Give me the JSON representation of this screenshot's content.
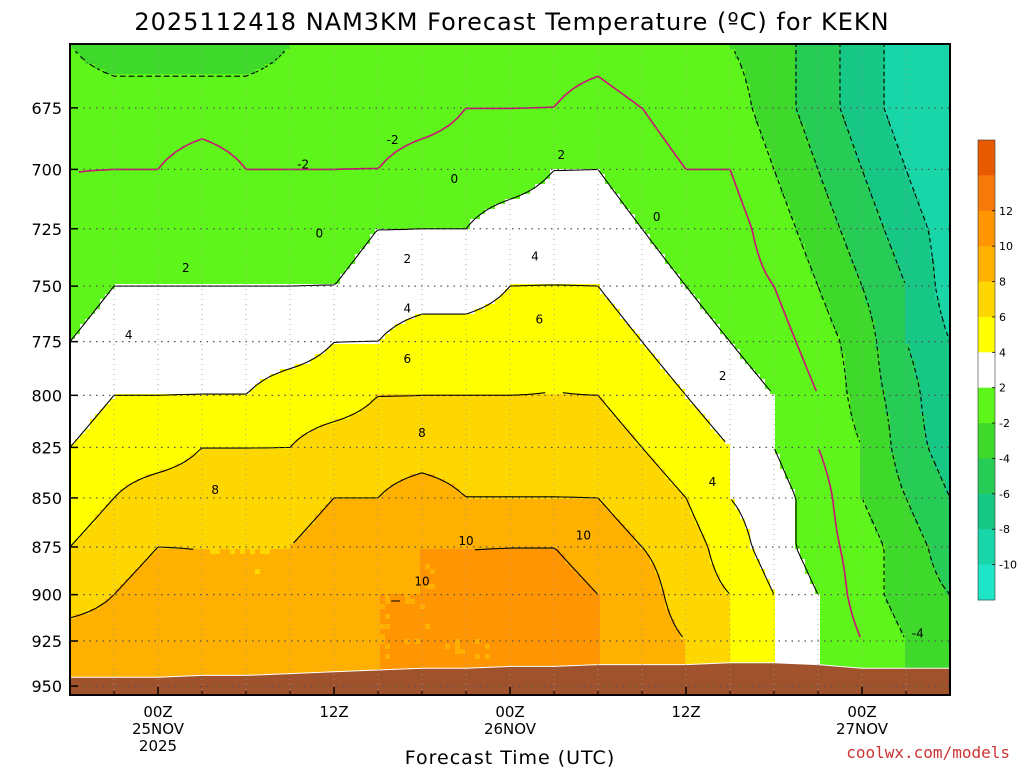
{
  "title": "2025112418 NAM3KM Forecast Temperature (ºC) for KEKN",
  "xlabel": "Forecast Time (UTC)",
  "credit": "coolwx.com/models",
  "x_ticks": [
    {
      "hour": 6,
      "lines": [
        "00Z",
        "25NOV",
        "2025"
      ]
    },
    {
      "hour": 18,
      "lines": [
        "12Z"
      ]
    },
    {
      "hour": 30,
      "lines": [
        "00Z",
        "26NOV"
      ]
    },
    {
      "hour": 42,
      "lines": [
        "12Z"
      ]
    },
    {
      "hour": 54,
      "lines": [
        "00Z",
        "27NOV"
      ]
    }
  ],
  "y_ticks": [
    675,
    700,
    725,
    750,
    775,
    800,
    825,
    850,
    875,
    900,
    925,
    950
  ],
  "colorbar": {
    "levels": [
      -12,
      -10,
      -8,
      -6,
      -4,
      -2,
      2,
      4,
      6,
      8,
      10,
      12,
      14
    ],
    "colors": [
      "#1fe5c8",
      "#19d6a8",
      "#17c785",
      "#26cc55",
      "#3fd92c",
      "#5ef51a",
      "#ffffff",
      "#ffff00",
      "#ffd700",
      "#ffb000",
      "#ff9500",
      "#f57a0a",
      "#e85a00"
    ],
    "labels": [
      "-10",
      "-8",
      "-6",
      "-4",
      "-2",
      "2",
      "4",
      "6",
      "8",
      "10",
      "12"
    ]
  },
  "colors": {
    "terrain": "#a0522d",
    "zero_line": "#cc1177",
    "contour": "#000000",
    "grid": "#555555"
  },
  "chart_data": {
    "type": "heatmap",
    "title": "2025112418 NAM3KM Forecast Temperature (ºC) for KEKN",
    "xlabel": "Forecast Time (UTC)",
    "ylabel": "",
    "x_units": "hours from 2025-11-24 18Z",
    "xlim": [
      0,
      60
    ],
    "ylim": [
      650,
      955
    ],
    "y_scale": "log-pressure",
    "contour_levels": [
      -10,
      -8,
      -6,
      -4,
      -2,
      0,
      2,
      4,
      6,
      8,
      10,
      12
    ],
    "x": [
      0,
      3,
      6,
      9,
      12,
      15,
      18,
      21,
      24,
      27,
      30,
      33,
      36,
      39,
      42,
      45,
      48,
      51,
      54,
      57,
      60
    ],
    "levels_hpa": [
      650,
      675,
      700,
      725,
      750,
      775,
      800,
      825,
      850,
      875,
      900,
      925,
      950
    ],
    "values": [
      [
        -2,
        -3,
        -3,
        -3,
        -3,
        -2,
        -2,
        -2,
        -2,
        -2,
        -2,
        -1,
        -1,
        -2,
        -2,
        -2,
        -3,
        -5,
        -7,
        -9,
        -10
      ],
      [
        -1,
        -1,
        -1,
        -1,
        -1,
        -1,
        -1,
        -1,
        -1,
        0,
        0,
        0,
        1,
        0,
        -1,
        -1,
        -3,
        -5,
        -7,
        -9,
        -10
      ],
      [
        0,
        0,
        0,
        1,
        0,
        0,
        0,
        0,
        1,
        1,
        1,
        2,
        2,
        1,
        0,
        0,
        -2,
        -4,
        -6,
        -8,
        -10
      ],
      [
        0,
        1,
        1,
        1,
        1,
        1,
        1,
        2,
        2,
        2,
        3,
        3,
        3,
        2,
        1,
        1,
        -1,
        -3,
        -5,
        -7,
        -9
      ],
      [
        1,
        2,
        2,
        2,
        2,
        2,
        2,
        3,
        3,
        3,
        4,
        4,
        4,
        3,
        2,
        1,
        0,
        -2,
        -4,
        -6,
        -9
      ],
      [
        2,
        3,
        3,
        3,
        3,
        3,
        4,
        4,
        5,
        5,
        5,
        6,
        5,
        4,
        3,
        2,
        1,
        -1,
        -3,
        -6,
        -8
      ],
      [
        3,
        4,
        4,
        4,
        4,
        5,
        5,
        6,
        6,
        6,
        6,
        6,
        6,
        5,
        4,
        3,
        2,
        0,
        -3,
        -5,
        -8
      ],
      [
        4,
        5,
        5,
        6,
        6,
        6,
        7,
        7,
        7,
        7,
        7,
        7,
        7,
        6,
        5,
        4,
        2,
        0,
        -2,
        -5,
        -7
      ],
      [
        5,
        6,
        7,
        7,
        7,
        7,
        8,
        8,
        9,
        8,
        8,
        8,
        8,
        7,
        6,
        4,
        3,
        1,
        -2,
        -4,
        -6
      ],
      [
        6,
        7,
        8,
        8,
        8,
        8,
        9,
        9,
        10,
        10,
        10,
        10,
        9,
        8,
        7,
        5,
        3,
        1,
        -1,
        -3,
        -5
      ],
      [
        7,
        8,
        9,
        8,
        8,
        8,
        9,
        10,
        10,
        10,
        11,
        11,
        10,
        9,
        7,
        6,
        4,
        2,
        -1,
        -3,
        -4
      ],
      [
        9,
        9,
        9,
        9,
        8,
        9,
        9,
        10,
        10,
        10,
        10,
        11,
        10,
        9,
        8,
        6,
        4,
        2,
        0,
        -2,
        -3
      ],
      [
        10,
        10,
        9,
        9,
        9,
        9,
        10,
        10,
        10,
        10,
        10,
        10,
        10,
        9,
        8,
        6,
        4,
        2,
        0,
        -2,
        -3
      ]
    ],
    "surface_pressure_hpa": [
      945,
      945,
      945,
      944,
      944,
      943,
      942,
      941,
      940,
      940,
      939,
      939,
      938,
      938,
      938,
      937,
      937,
      938,
      940,
      940,
      940
    ],
    "contour_label_points": [
      {
        "text": "-2",
        "x": 22,
        "p": 688
      },
      {
        "text": "-2",
        "x": 15.9,
        "p": 698
      },
      {
        "text": "0",
        "x": 26.2,
        "p": 704
      },
      {
        "text": "0",
        "x": 17,
        "p": 727
      },
      {
        "text": "0",
        "x": 40,
        "p": 720
      },
      {
        "text": "2",
        "x": 7.9,
        "p": 742
      },
      {
        "text": "2",
        "x": 23,
        "p": 738
      },
      {
        "text": "2",
        "x": 33.5,
        "p": 694
      },
      {
        "text": "2",
        "x": 44.5,
        "p": 791
      },
      {
        "text": "4",
        "x": 4,
        "p": 772
      },
      {
        "text": "4",
        "x": 23,
        "p": 760
      },
      {
        "text": "4",
        "x": 31.7,
        "p": 737
      },
      {
        "text": "4",
        "x": 43.8,
        "p": 842
      },
      {
        "text": "6",
        "x": 23,
        "p": 783
      },
      {
        "text": "6",
        "x": 32,
        "p": 765
      },
      {
        "text": "8",
        "x": 9.9,
        "p": 846
      },
      {
        "text": "8",
        "x": 24,
        "p": 818
      },
      {
        "text": "10",
        "x": 27,
        "p": 872
      },
      {
        "text": "10",
        "x": 35,
        "p": 869
      },
      {
        "text": "10",
        "x": 24,
        "p": 893
      },
      {
        "text": "-4",
        "x": 57.8,
        "p": 921
      }
    ]
  }
}
